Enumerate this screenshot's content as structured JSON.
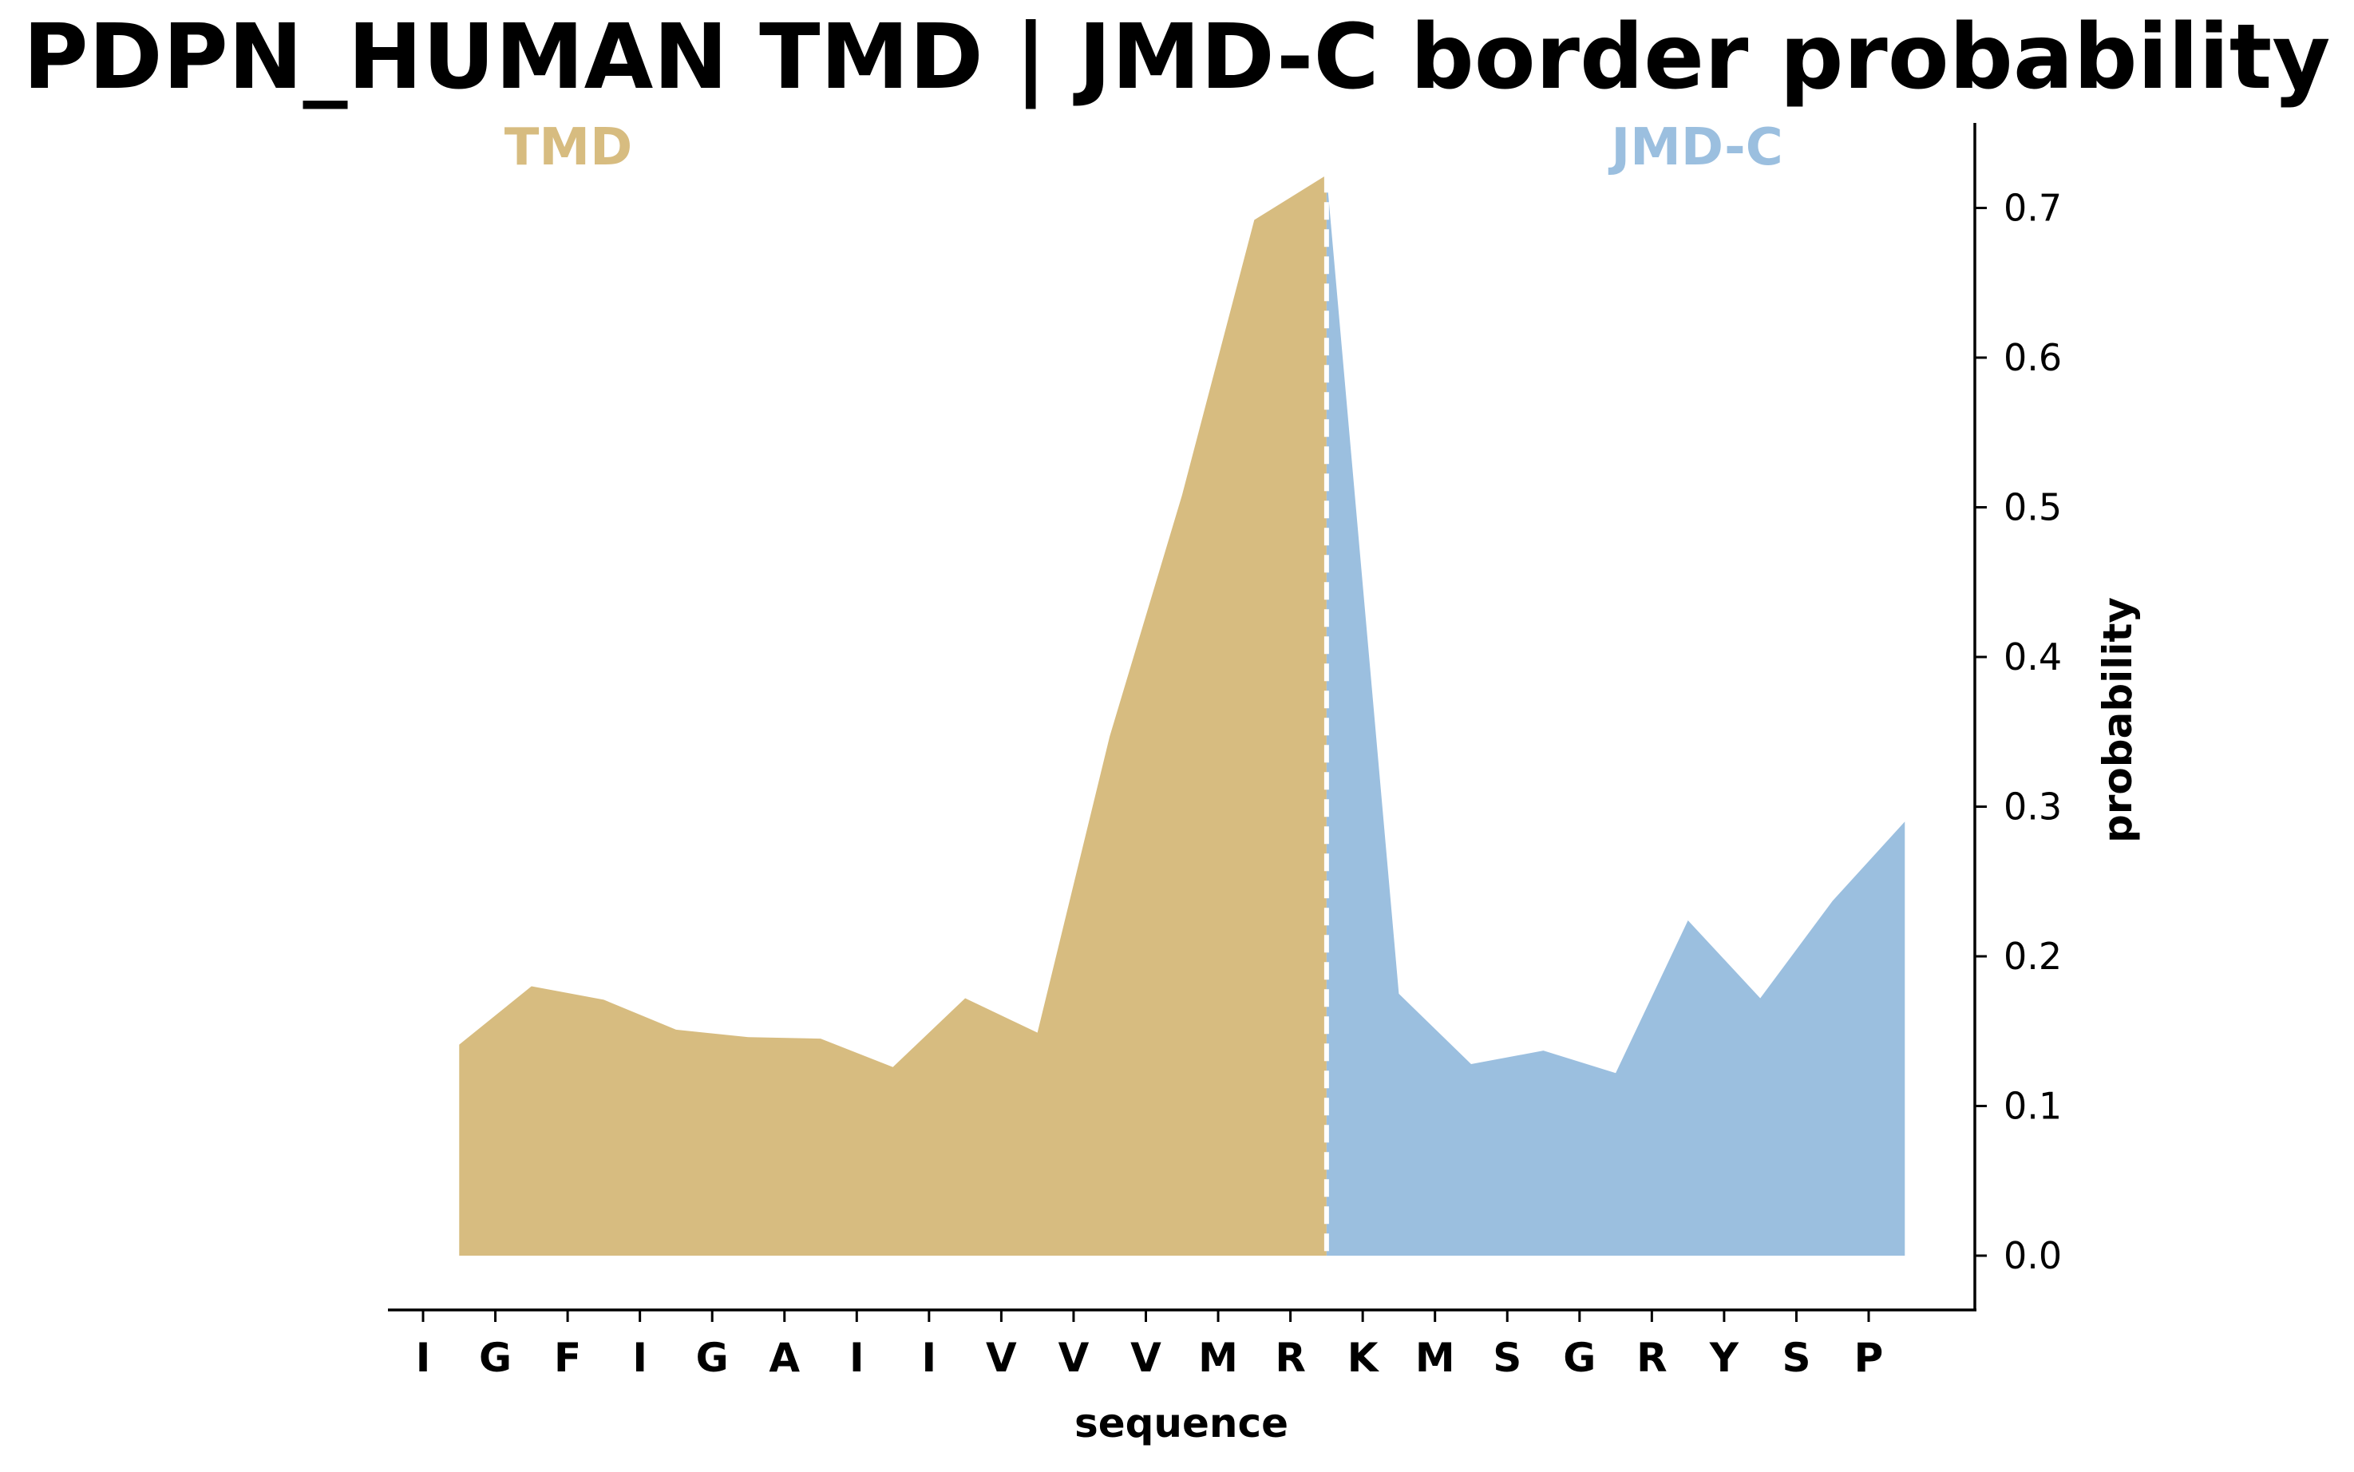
{
  "chart_data": {
    "type": "area",
    "title": "PDPN_HUMAN TMD | JMD-C border probability",
    "xlabel": "sequence",
    "ylabel": "probability",
    "y_axis_position": "right",
    "ylim": [
      -0.036,
      0.76
    ],
    "yticks": [
      "0.0",
      "0.1",
      "0.2",
      "0.3",
      "0.4",
      "0.5",
      "0.6",
      "0.7"
    ],
    "categories": [
      "I",
      "G",
      "F",
      "I",
      "G",
      "A",
      "I",
      "I",
      "V",
      "V",
      "V",
      "M",
      "R",
      "K",
      "M",
      "S",
      "G",
      "R",
      "Y",
      "S",
      "P"
    ],
    "grid": false,
    "legend": "none",
    "region_labels": [
      {
        "label": "TMD",
        "color": "#d7bc80"
      },
      {
        "label": "JMD-C",
        "color": "#9bbfdf"
      }
    ],
    "border_marker": {
      "style": "dashed",
      "color": "#ffffff",
      "at_x": 12.5
    },
    "series": [
      {
        "region": "TMD",
        "color": "#d7bc80",
        "x": [
          0.5,
          1.5,
          2.5,
          3.5,
          4.5,
          5.5,
          6.5,
          7.5,
          8.5,
          9.5,
          10.5,
          11.5,
          12.5
        ],
        "values": [
          0.141,
          0.18,
          0.171,
          0.151,
          0.146,
          0.145,
          0.126,
          0.172,
          0.149,
          0.347,
          0.508,
          0.692,
          0.722
        ]
      },
      {
        "region": "JMD-C",
        "color": "#9bbfdf",
        "x": [
          12.5,
          13.5,
          14.5,
          15.5,
          16.5,
          17.5,
          18.5,
          19.5,
          20.5
        ],
        "values": [
          0.722,
          0.175,
          0.128,
          0.137,
          0.122,
          0.224,
          0.172,
          0.237,
          0.29
        ]
      }
    ]
  }
}
